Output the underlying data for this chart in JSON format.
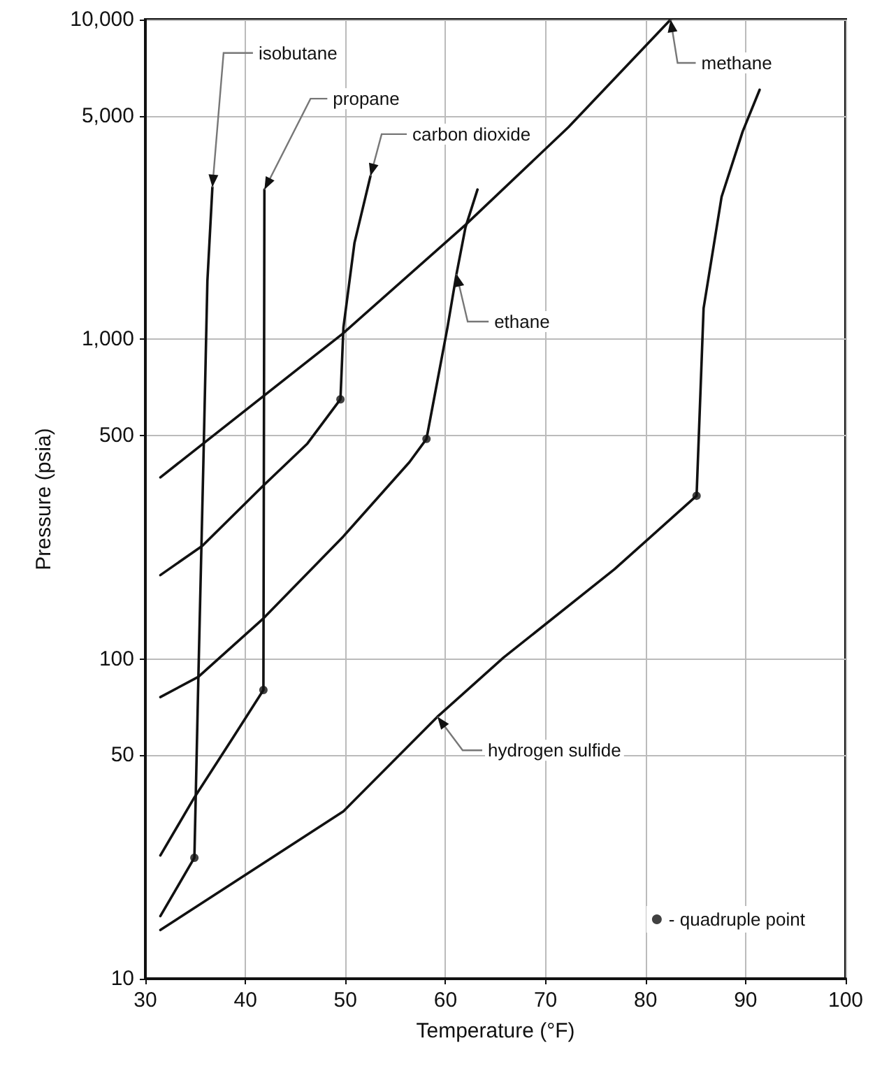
{
  "chart_data": {
    "type": "line",
    "xlabel": "Temperature (°F)",
    "ylabel": "Pressure (psia)",
    "xlim": [
      30,
      100
    ],
    "xticks": [
      30,
      40,
      50,
      60,
      70,
      80,
      90,
      100
    ],
    "ylim": [
      10,
      10000
    ],
    "yticks": [
      10,
      50,
      100,
      500,
      {
        "value": 1000,
        "label": "1,000"
      },
      {
        "value": 5000,
        "label": "5,000"
      },
      {
        "value": 10000,
        "label": "10,000"
      }
    ],
    "log": "y",
    "grid": true,
    "legend": "bottom right",
    "marker": "none",
    "line_style": "solid",
    "series": [
      {
        "name": "methane",
        "color": "#111111",
        "x": [
          31.5,
          49.7,
          62,
          72.3,
          82.5
        ],
        "values": [
          370,
          1040,
          2280,
          4610,
          10000
        ]
      },
      {
        "name": "ethane",
        "color": "#111111",
        "x": [
          31.5,
          35.3,
          41.8,
          49.8,
          56.4,
          58.1,
          60.2,
          61.1,
          62.0,
          63.2
        ],
        "values": [
          76,
          88,
          134,
          242,
          413,
          488,
          1090,
          1600,
          2240,
          2940
        ]
      },
      {
        "name": "propane",
        "color": "#111111",
        "x": [
          31.5,
          34.9,
          38.8,
          41.8,
          41.9
        ],
        "values": [
          24.3,
          36.9,
          57,
          80,
          2940
        ]
      },
      {
        "name": "isobutane",
        "color": "#111111",
        "x": [
          31.5,
          34.9,
          35.3,
          35.8,
          36.2,
          36.7
        ],
        "values": [
          15.7,
          23.9,
          88,
          413,
          1520,
          2990
        ]
      },
      {
        "name": "carbon dioxide",
        "color": "#111111",
        "x": [
          31.5,
          35.7,
          41.8,
          46.2,
          49.5,
          49.8,
          50.9,
          52.5
        ],
        "values": [
          183,
          226,
          349,
          472,
          649,
          1090,
          2000,
          3240
        ]
      },
      {
        "name": "hydrogen sulfide",
        "color": "#111111",
        "x": [
          31.5,
          49.8,
          59.2,
          65.8,
          76.9,
          85.1,
          85.8,
          87.6,
          89.7,
          91.4
        ],
        "values": [
          14.2,
          33.4,
          66,
          101,
          191,
          324,
          1250,
          2790,
          4460,
          6030
        ]
      },
      {
        "name": "- quadruple point",
        "type": "scatter",
        "marker": "circle",
        "color": "#111111",
        "x": [
          34.9,
          41.8,
          49.5,
          58.1,
          85.1
        ],
        "values": [
          23.9,
          80,
          649,
          488,
          324
        ]
      }
    ]
  }
}
